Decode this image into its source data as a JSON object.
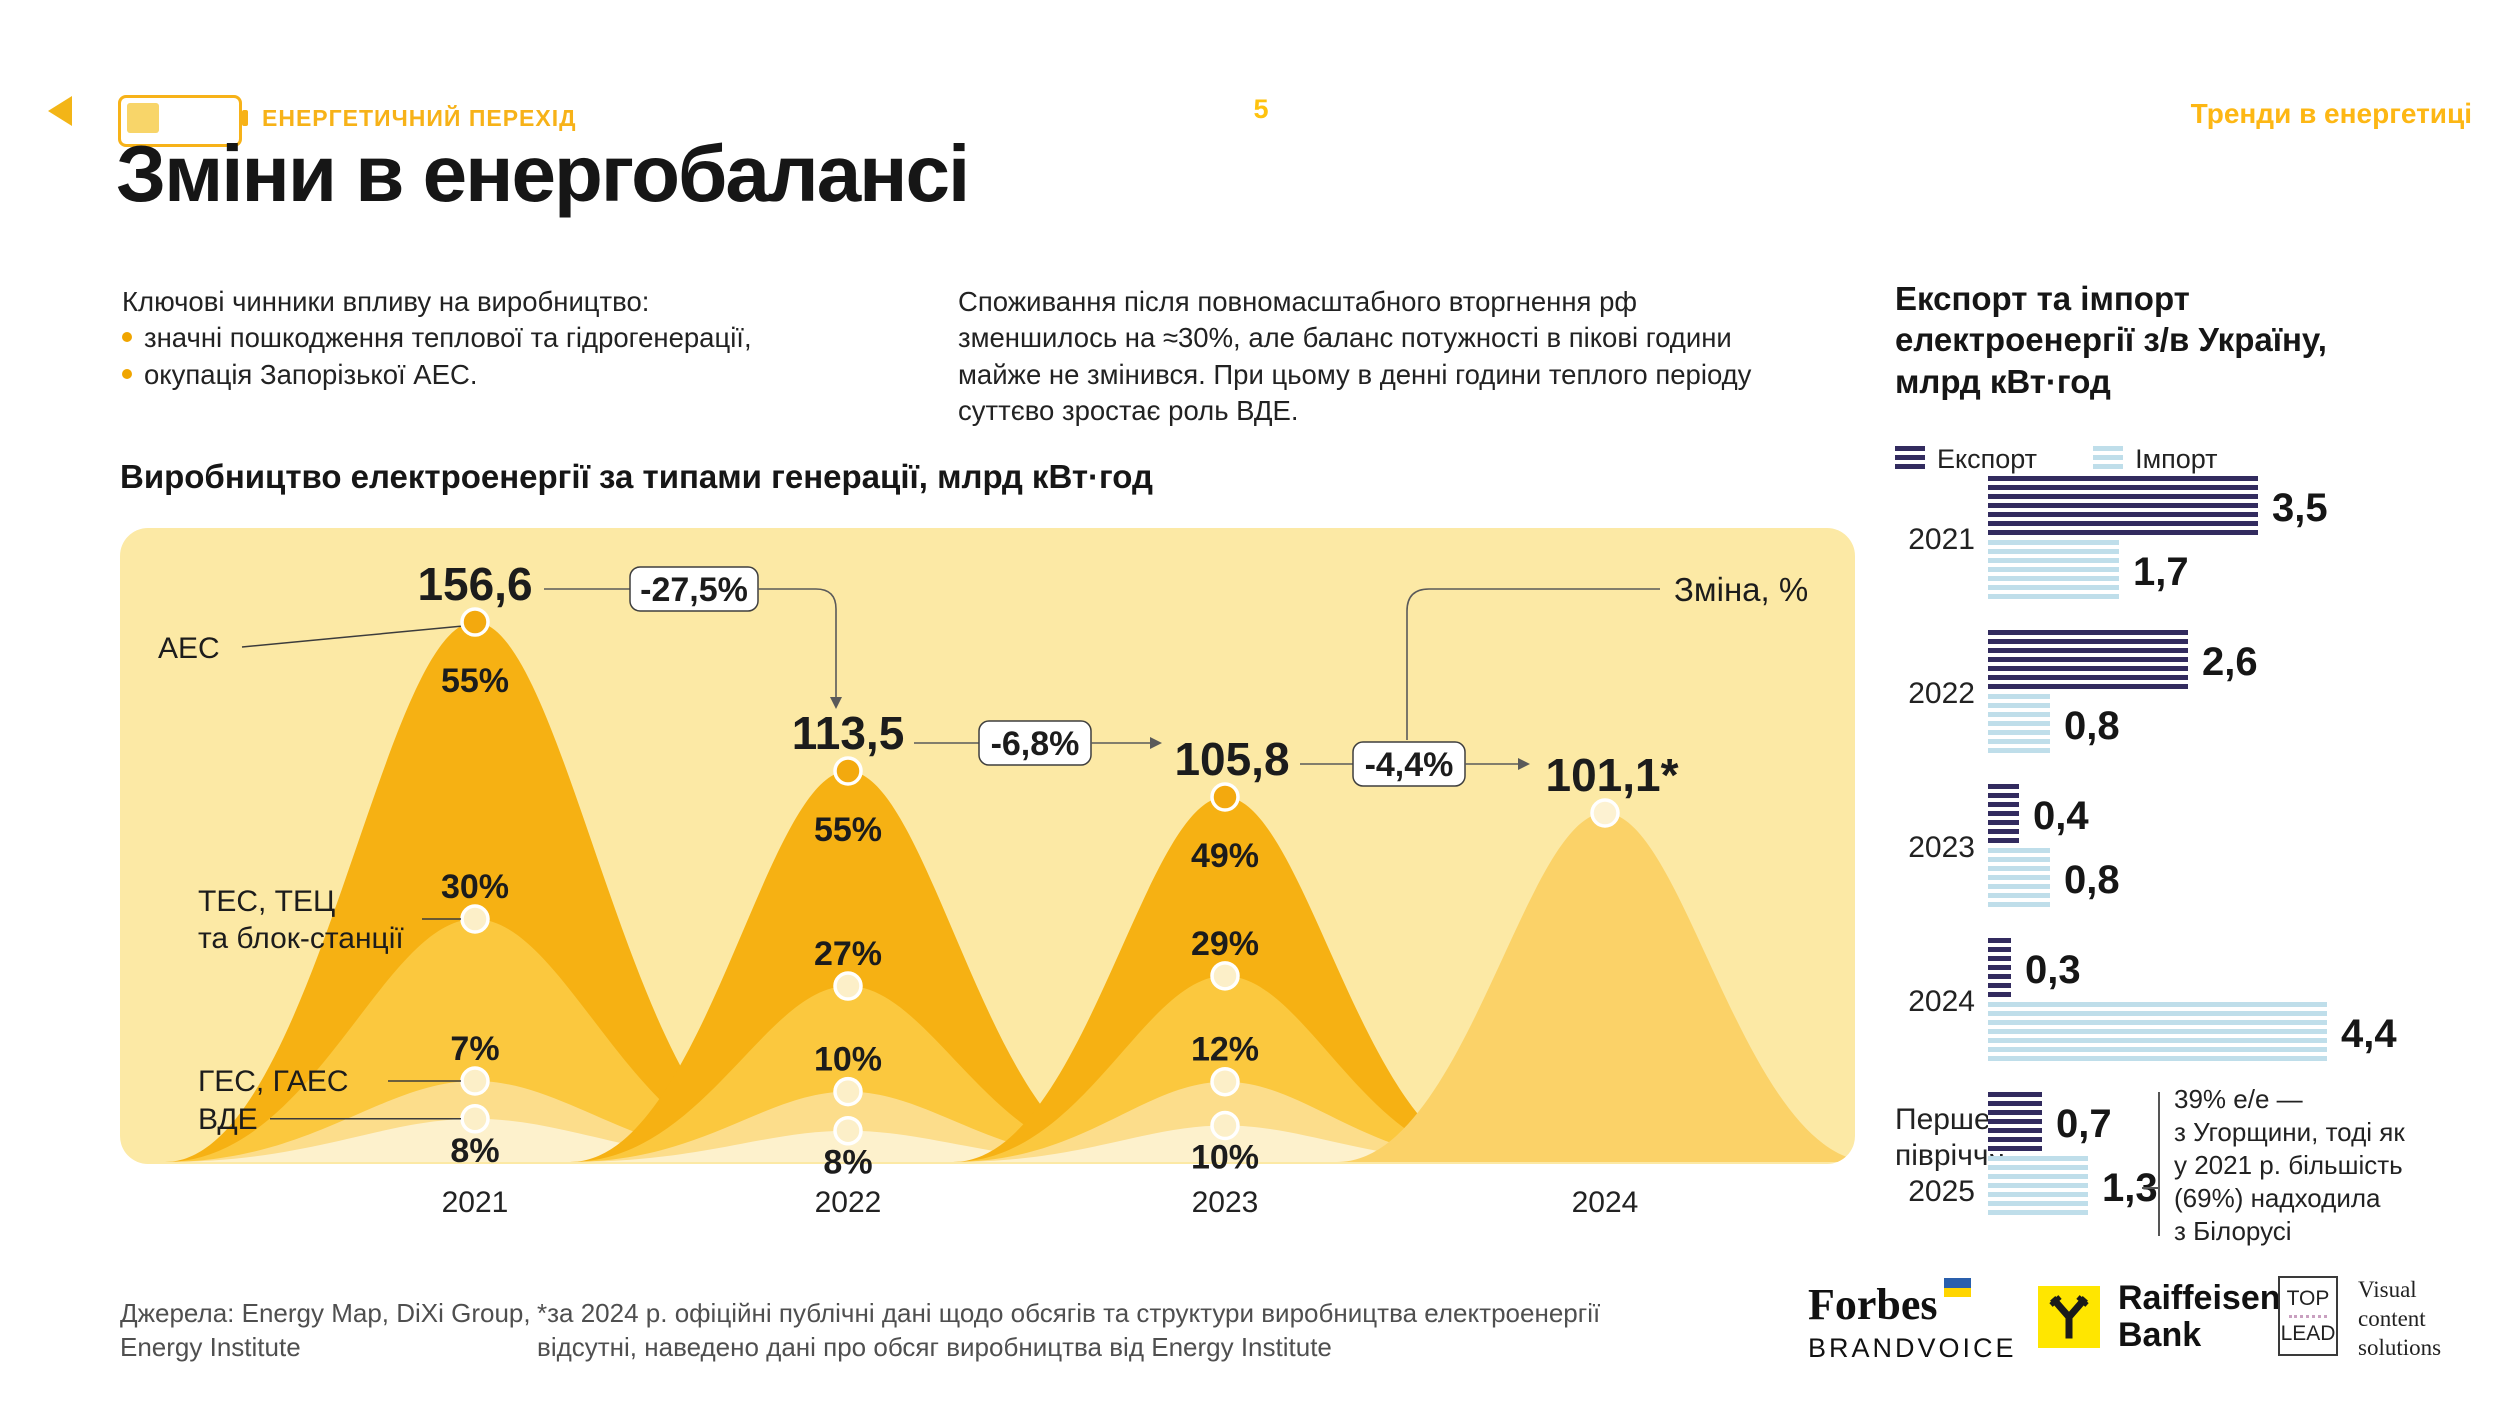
{
  "theme": {
    "accent_yellow": "#FFC20E",
    "panel_bg": "#FCE9A5",
    "layer_colors": [
      "#F6B113",
      "#FBC83E",
      "#FCDD8B",
      "#FDF1CC"
    ],
    "bell_2024_color": "#FBD268",
    "peak_dot_color": "#F3A90E",
    "boundary_dot_color": "#FCEFC8",
    "export_color": "#322B5F",
    "import_color": "#BFDEEA"
  },
  "header": {
    "series_label": "ЕНЕРГЕТИЧНИЙ ПЕРЕХІД",
    "page_number": "5",
    "section_label": "Тренди в енергетиці",
    "icons": [
      "arrow-left-icon",
      "battery-icon"
    ]
  },
  "title": "Зміни в енергобалансі",
  "intro_left": {
    "lead": "Ключові чинники впливу на виробництво:",
    "bullets": [
      "значні пошкодження теплової та гідрогенерації,",
      "окупація Запорізької АЕС."
    ]
  },
  "intro_middle": "Споживання після повномасштабного вторгнення рф зменшилось на ≈30%, але баланс потужності в пікові години майже не змінився. При цьому в денні години теплого періоду суттєво зростає роль ВДЕ.",
  "chart_data": [
    {
      "type": "area",
      "title": "Виробництво електроенергії за типами генерації, млрд кВт·год",
      "categories": [
        "2021",
        "2022",
        "2023",
        "2024"
      ],
      "totals": [
        156.6,
        113.5,
        105.8,
        101.1
      ],
      "total_labels": [
        "156,6",
        "113,5",
        "105,8",
        "101,1*"
      ],
      "changes": [
        "-27,5%",
        "-6,8%",
        "-4,4%"
      ],
      "changes_legend": "Зміна, %",
      "series": [
        {
          "name": "АЕС",
          "label_lines": [
            "АЕС"
          ],
          "share_pct": [
            55,
            55,
            49,
            null
          ],
          "pct_labels": [
            "55%",
            "55%",
            "49%",
            ""
          ]
        },
        {
          "name": "ТЕС, ТЕЦ та блок-станції",
          "label_lines": [
            "ТЕС, ТЕЦ",
            "та блок-станції"
          ],
          "share_pct": [
            30,
            27,
            29,
            null
          ],
          "pct_labels": [
            "30%",
            "27%",
            "29%",
            ""
          ]
        },
        {
          "name": "ГЕС, ГАЕС",
          "label_lines": [
            "ГЕС, ГАЕС"
          ],
          "share_pct": [
            7,
            10,
            12,
            null
          ],
          "pct_labels": [
            "7%",
            "10%",
            "12%",
            ""
          ]
        },
        {
          "name": "ВДЕ",
          "label_lines": [
            "ВДЕ"
          ],
          "share_pct": [
            8,
            8,
            10,
            null
          ],
          "pct_labels": [
            "8%",
            "8%",
            "10%",
            ""
          ]
        }
      ]
    },
    {
      "type": "bar",
      "orientation": "horizontal",
      "title": "Експорт та імпорт електроенергії з/в Україну, млрд кВт·год",
      "title_lines": [
        "Експорт та імпорт",
        "електроенергії з/в Україну,",
        "млрд кВт·год"
      ],
      "legend": [
        "Експорт",
        "Імпорт"
      ],
      "categories": [
        "2021",
        "2022",
        "2023",
        "2024",
        "Перше півріччя 2025"
      ],
      "category_lines": [
        [
          "2021"
        ],
        [
          "2022"
        ],
        [
          "2023"
        ],
        [
          "2024"
        ],
        [
          "Перше",
          "півріччя",
          "2025"
        ]
      ],
      "series": [
        {
          "name": "Експорт",
          "values": [
            3.5,
            2.6,
            0.4,
            0.3,
            0.7
          ],
          "labels": [
            "3,5",
            "2,6",
            "0,4",
            "0,3",
            "0,7"
          ]
        },
        {
          "name": "Імпорт",
          "values": [
            1.7,
            0.8,
            0.8,
            4.4,
            1.3
          ],
          "labels": [
            "1,7",
            "0,8",
            "0,8",
            "4,4",
            "1,3"
          ]
        }
      ],
      "annotation": {
        "lines": [
          "39% е/е —",
          "з Угорщини, тоді як",
          "у 2021 р. більшість",
          "(69%) надходила",
          "з Білорусі"
        ],
        "attached_to": "1,3"
      }
    }
  ],
  "footer": {
    "sources_lines": [
      "Джерела: Energy Map, DiXi Group,",
      "Energy Institute"
    ],
    "footnote_lines": [
      "*за 2024 р. офіційні публічні дані щодо обсягів та структури виробництва електроенергії",
      "відсутні, наведено дані про обсяг виробництва від Energy Institute"
    ],
    "logos": {
      "forbes": {
        "line1": "Forbes",
        "line2": "BRANDVOICE"
      },
      "raiffeisen": {
        "line1": "Raiffeisen",
        "line2": "Bank"
      },
      "toplead": {
        "box_top": "TOP",
        "box_bottom": "LEAD",
        "tagline_lines": [
          "Visual",
          "content",
          "solutions"
        ]
      }
    }
  }
}
